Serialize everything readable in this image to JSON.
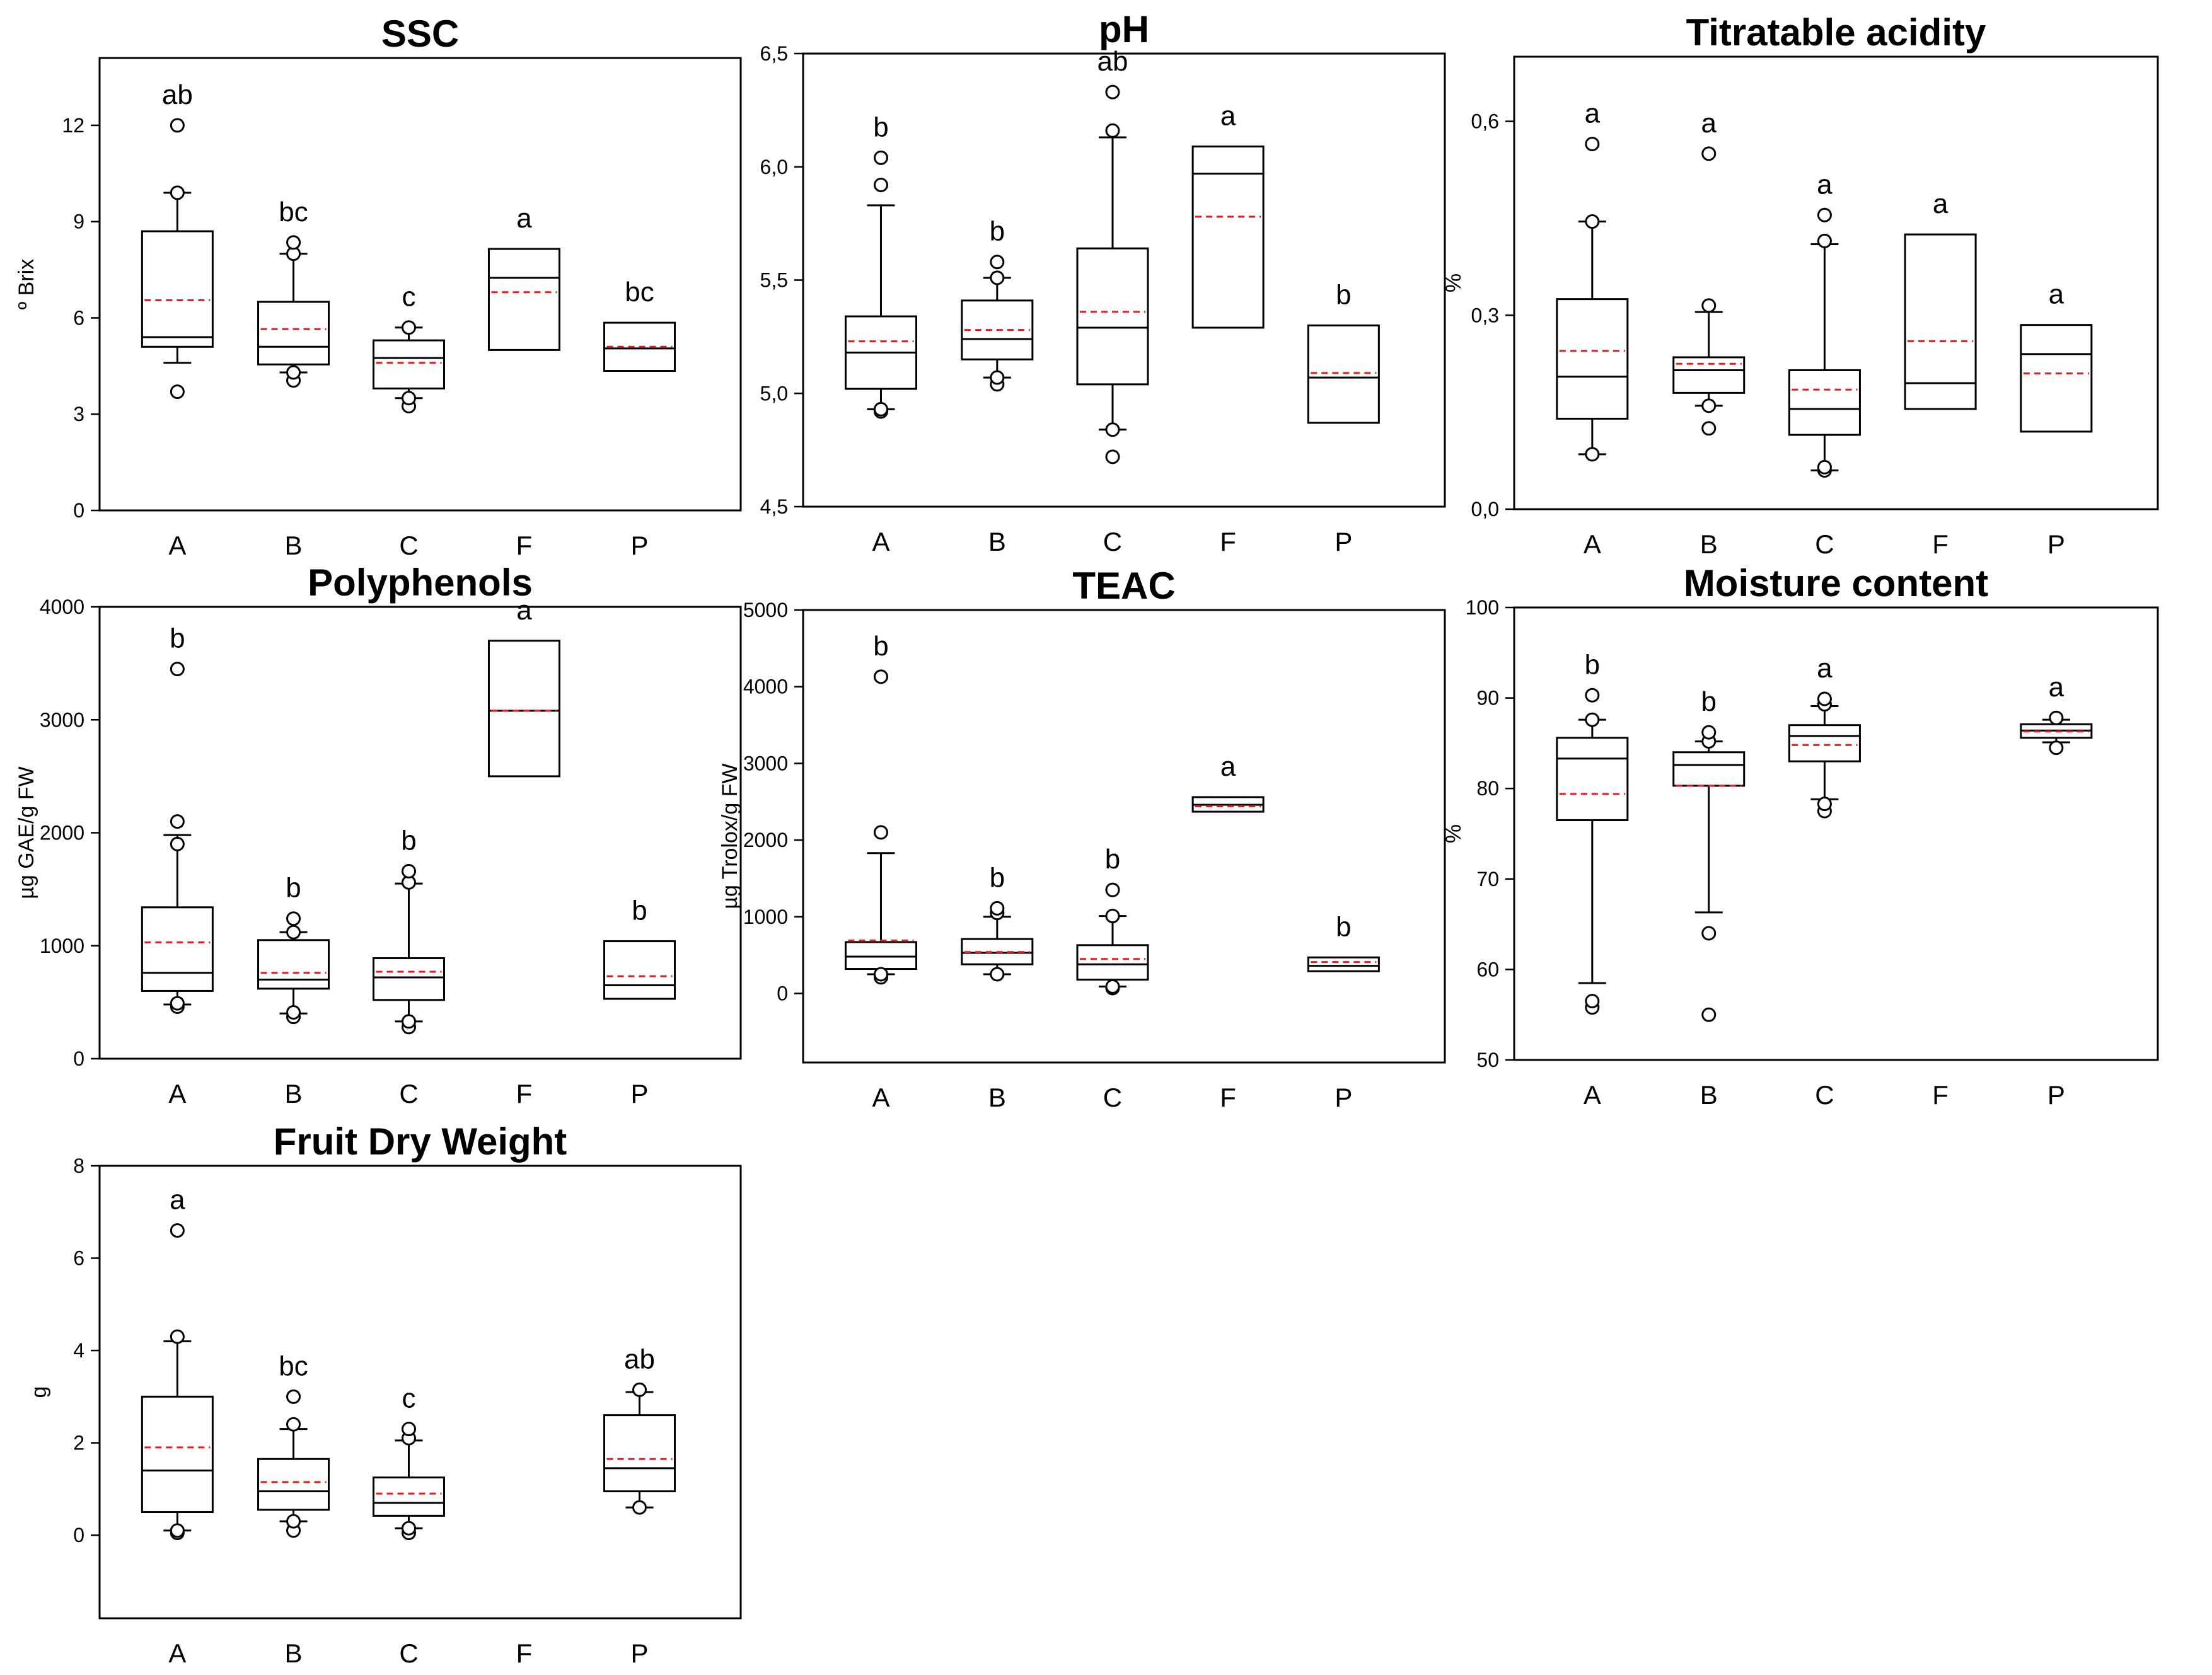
{
  "chart_data": [
    {
      "type": "box",
      "title": "SSC",
      "ylabel": "º Brix",
      "ylim": [
        0,
        14.1
      ],
      "yticks": [
        0,
        3,
        6,
        9,
        12
      ],
      "ytick_labels": [
        "0",
        "3",
        "6",
        "9",
        "12"
      ],
      "categories": [
        "A",
        "B",
        "C",
        "F",
        "P"
      ],
      "boxes": [
        {
          "cat": "A",
          "q1": 5.1,
          "median": 5.4,
          "q3": 8.7,
          "mean": 6.55,
          "whisker_low": 4.6,
          "whisker_high": 9.9,
          "outliers": [
            3.7,
            9.9,
            12.0
          ],
          "letter": "ab"
        },
        {
          "cat": "B",
          "q1": 4.55,
          "median": 5.1,
          "q3": 6.5,
          "mean": 5.65,
          "whisker_low": 4.3,
          "whisker_high": 8.0,
          "outliers": [
            4.05,
            4.3,
            8.0,
            8.35
          ],
          "letter": "bc"
        },
        {
          "cat": "C",
          "q1": 3.8,
          "median": 4.75,
          "q3": 5.3,
          "mean": 4.6,
          "whisker_low": 3.5,
          "whisker_high": 5.7,
          "outliers": [
            3.25,
            3.5,
            5.7
          ],
          "letter": "c"
        },
        {
          "cat": "F",
          "q1": 5.0,
          "median": 7.25,
          "q3": 8.15,
          "mean": 6.8,
          "whisker_low": null,
          "whisker_high": null,
          "outliers": [],
          "letter": "a"
        },
        {
          "cat": "P",
          "q1": 4.35,
          "median": 5.05,
          "q3": 5.85,
          "mean": 5.1,
          "whisker_low": null,
          "whisker_high": null,
          "outliers": [],
          "letter": "bc"
        }
      ]
    },
    {
      "type": "box",
      "title": "pH",
      "ylabel": "",
      "ylim": [
        4.5,
        6.5
      ],
      "yticks": [
        4.5,
        5.0,
        5.5,
        6.0,
        6.5
      ],
      "ytick_labels": [
        "4,5",
        "5,0",
        "5,5",
        "6,0",
        "6,5"
      ],
      "categories": [
        "A",
        "B",
        "C",
        "F",
        "P"
      ],
      "boxes": [
        {
          "cat": "A",
          "q1": 5.02,
          "median": 5.18,
          "q3": 5.34,
          "mean": 5.23,
          "whisker_low": 4.93,
          "whisker_high": 5.83,
          "outliers": [
            4.92,
            4.93,
            5.92,
            6.04
          ],
          "letter": "b"
        },
        {
          "cat": "B",
          "q1": 5.15,
          "median": 5.24,
          "q3": 5.41,
          "mean": 5.28,
          "whisker_low": 5.07,
          "whisker_high": 5.51,
          "outliers": [
            5.04,
            5.07,
            5.51,
            5.58
          ],
          "letter": "b"
        },
        {
          "cat": "C",
          "q1": 5.04,
          "median": 5.29,
          "q3": 5.64,
          "mean": 5.36,
          "whisker_low": 4.84,
          "whisker_high": 6.13,
          "outliers": [
            4.72,
            4.84,
            6.16,
            6.33
          ],
          "letter": "ab"
        },
        {
          "cat": "F",
          "q1": 5.29,
          "median": 5.97,
          "q3": 6.09,
          "mean": 5.78,
          "whisker_low": null,
          "whisker_high": null,
          "outliers": [],
          "letter": "a"
        },
        {
          "cat": "P",
          "q1": 4.87,
          "median": 5.07,
          "q3": 5.3,
          "mean": 5.09,
          "whisker_low": null,
          "whisker_high": null,
          "outliers": [],
          "letter": "b"
        }
      ]
    },
    {
      "type": "box",
      "title": "Titratable acidity",
      "ylabel": "%",
      "ylim": [
        0,
        0.7
      ],
      "yticks": [
        0,
        0.3,
        0.6
      ],
      "ytick_labels": [
        "0,0",
        "0,3",
        "0,6"
      ],
      "categories": [
        "A",
        "B",
        "C",
        "F",
        "P"
      ],
      "boxes": [
        {
          "cat": "A",
          "q1": 0.14,
          "median": 0.205,
          "q3": 0.325,
          "mean": 0.245,
          "whisker_low": 0.085,
          "whisker_high": 0.445,
          "outliers": [
            0.085,
            0.445,
            0.565
          ],
          "letter": "a"
        },
        {
          "cat": "B",
          "q1": 0.18,
          "median": 0.215,
          "q3": 0.235,
          "mean": 0.225,
          "whisker_low": 0.16,
          "whisker_high": 0.305,
          "outliers": [
            0.125,
            0.16,
            0.315,
            0.55
          ],
          "letter": "a"
        },
        {
          "cat": "C",
          "q1": 0.115,
          "median": 0.155,
          "q3": 0.215,
          "mean": 0.185,
          "whisker_low": 0.06,
          "whisker_high": 0.41,
          "outliers": [
            0.06,
            0.065,
            0.415,
            0.455
          ],
          "letter": "a"
        },
        {
          "cat": "F",
          "q1": 0.155,
          "median": 0.195,
          "q3": 0.425,
          "mean": 0.26,
          "whisker_low": null,
          "whisker_high": null,
          "outliers": [],
          "letter": "a"
        },
        {
          "cat": "P",
          "q1": 0.12,
          "median": 0.24,
          "q3": 0.285,
          "mean": 0.21,
          "whisker_low": null,
          "whisker_high": null,
          "outliers": [],
          "letter": "a"
        }
      ]
    },
    {
      "type": "box",
      "title": "Polyphenols",
      "ylabel": "µg GAE/g FW",
      "ylim": [
        0,
        4000
      ],
      "yticks": [
        0,
        1000,
        2000,
        3000,
        4000
      ],
      "ytick_labels": [
        "0",
        "1000",
        "2000",
        "3000",
        "4000"
      ],
      "categories": [
        "A",
        "B",
        "C",
        "F",
        "P"
      ],
      "boxes": [
        {
          "cat": "A",
          "q1": 600,
          "median": 760,
          "q3": 1340,
          "mean": 1030,
          "whisker_low": 480,
          "whisker_high": 1980,
          "outliers": [
            460,
            490,
            1900,
            2100,
            3450
          ],
          "letter": "b"
        },
        {
          "cat": "B",
          "q1": 620,
          "median": 700,
          "q3": 1050,
          "mean": 760,
          "whisker_low": 400,
          "whisker_high": 1120,
          "outliers": [
            370,
            410,
            1120,
            1240
          ],
          "letter": "b"
        },
        {
          "cat": "C",
          "q1": 520,
          "median": 720,
          "q3": 890,
          "mean": 770,
          "whisker_low": 330,
          "whisker_high": 1550,
          "outliers": [
            280,
            330,
            1560,
            1660
          ],
          "letter": "b"
        },
        {
          "cat": "F",
          "q1": 2500,
          "median": 3080,
          "q3": 3700,
          "mean": 3080,
          "whisker_low": null,
          "whisker_high": null,
          "outliers": [],
          "letter": "a"
        },
        {
          "cat": "P",
          "q1": 530,
          "median": 650,
          "q3": 1040,
          "mean": 730,
          "whisker_low": null,
          "whisker_high": null,
          "outliers": [],
          "letter": "b"
        }
      ]
    },
    {
      "type": "box",
      "title": "TEAC",
      "ylabel": "µg Trolox/g FW",
      "ylim": [
        -900,
        5000
      ],
      "yticks": [
        0,
        1000,
        2000,
        3000,
        4000,
        5000
      ],
      "ytick_labels": [
        "0",
        "1000",
        "2000",
        "3000",
        "4000",
        "5000"
      ],
      "categories": [
        "A",
        "B",
        "C",
        "F",
        "P"
      ],
      "boxes": [
        {
          "cat": "A",
          "q1": 320,
          "median": 480,
          "q3": 670,
          "mean": 690,
          "whisker_low": 250,
          "whisker_high": 1830,
          "outliers": [
            210,
            250,
            2100,
            4130
          ],
          "letter": "b"
        },
        {
          "cat": "B",
          "q1": 380,
          "median": 530,
          "q3": 710,
          "mean": 540,
          "whisker_low": 250,
          "whisker_high": 1000,
          "outliers": [
            250,
            1050,
            1110
          ],
          "letter": "b"
        },
        {
          "cat": "C",
          "q1": 180,
          "median": 380,
          "q3": 630,
          "mean": 450,
          "whisker_low": 90,
          "whisker_high": 1010,
          "outliers": [
            70,
            90,
            1010,
            1350
          ],
          "letter": "b"
        },
        {
          "cat": "F",
          "q1": 2370,
          "median": 2460,
          "q3": 2560,
          "mean": 2440,
          "whisker_low": null,
          "whisker_high": null,
          "outliers": [],
          "letter": "a"
        },
        {
          "cat": "P",
          "q1": 290,
          "median": 360,
          "q3": 470,
          "mean": 410,
          "whisker_low": null,
          "whisker_high": null,
          "outliers": [],
          "letter": "b"
        }
      ]
    },
    {
      "type": "box",
      "title": "Moisture content",
      "ylabel": "%",
      "ylim": [
        50,
        100
      ],
      "yticks": [
        50,
        60,
        70,
        80,
        90,
        100
      ],
      "ytick_labels": [
        "50",
        "60",
        "70",
        "80",
        "90",
        "100"
      ],
      "categories": [
        "A",
        "B",
        "C",
        "F",
        "P"
      ],
      "boxes": [
        {
          "cat": "A",
          "q1": 76.5,
          "median": 83.3,
          "q3": 85.6,
          "mean": 79.4,
          "whisker_low": 58.5,
          "whisker_high": 87.6,
          "outliers": [
            55.8,
            56.5,
            87.6,
            90.3
          ],
          "letter": "b"
        },
        {
          "cat": "B",
          "q1": 80.3,
          "median": 82.6,
          "q3": 84.0,
          "mean": 80.3,
          "whisker_low": 66.3,
          "whisker_high": 85.2,
          "outliers": [
            55.0,
            64.0,
            85.2,
            86.2
          ],
          "letter": "b"
        },
        {
          "cat": "C",
          "q1": 83.0,
          "median": 85.8,
          "q3": 87.0,
          "mean": 84.8,
          "whisker_low": 78.8,
          "whisker_high": 89.1,
          "outliers": [
            77.5,
            78.3,
            89.3,
            89.9
          ],
          "letter": "a"
        },
        {
          "cat": "P",
          "q1": 85.6,
          "median": 86.4,
          "q3": 87.1,
          "mean": 86.3,
          "whisker_low": 85.1,
          "whisker_high": 87.6,
          "outliers": [
            84.5,
            87.8
          ],
          "letter": "a"
        }
      ]
    },
    {
      "type": "box",
      "title": "Fruit Dry Weight",
      "ylabel": "g",
      "ylim": [
        -1.8,
        8
      ],
      "yticks": [
        0,
        2,
        4,
        6,
        8
      ],
      "ytick_labels": [
        "0",
        "2",
        "4",
        "6",
        "8"
      ],
      "categories": [
        "A",
        "B",
        "C",
        "F",
        "P"
      ],
      "boxes": [
        {
          "cat": "A",
          "q1": 0.5,
          "median": 1.4,
          "q3": 3.0,
          "mean": 1.9,
          "whisker_low": 0.1,
          "whisker_high": 4.2,
          "outliers": [
            0.05,
            0.1,
            4.3,
            6.6
          ],
          "letter": "a"
        },
        {
          "cat": "B",
          "q1": 0.55,
          "median": 0.95,
          "q3": 1.65,
          "mean": 1.15,
          "whisker_low": 0.3,
          "whisker_high": 2.3,
          "outliers": [
            0.1,
            0.3,
            2.4,
            3.0
          ],
          "letter": "bc"
        },
        {
          "cat": "C",
          "q1": 0.42,
          "median": 0.7,
          "q3": 1.25,
          "mean": 0.9,
          "whisker_low": 0.15,
          "whisker_high": 2.05,
          "outliers": [
            0.05,
            0.15,
            2.1,
            2.3
          ],
          "letter": "c"
        },
        {
          "cat": "P",
          "q1": 0.95,
          "median": 1.45,
          "q3": 2.6,
          "mean": 1.65,
          "whisker_low": 0.6,
          "whisker_high": 3.1,
          "outliers": [
            0.6,
            3.15
          ],
          "letter": "ab"
        }
      ]
    }
  ],
  "colors": {
    "mean_line": "#e8191f",
    "box": "#000000"
  }
}
